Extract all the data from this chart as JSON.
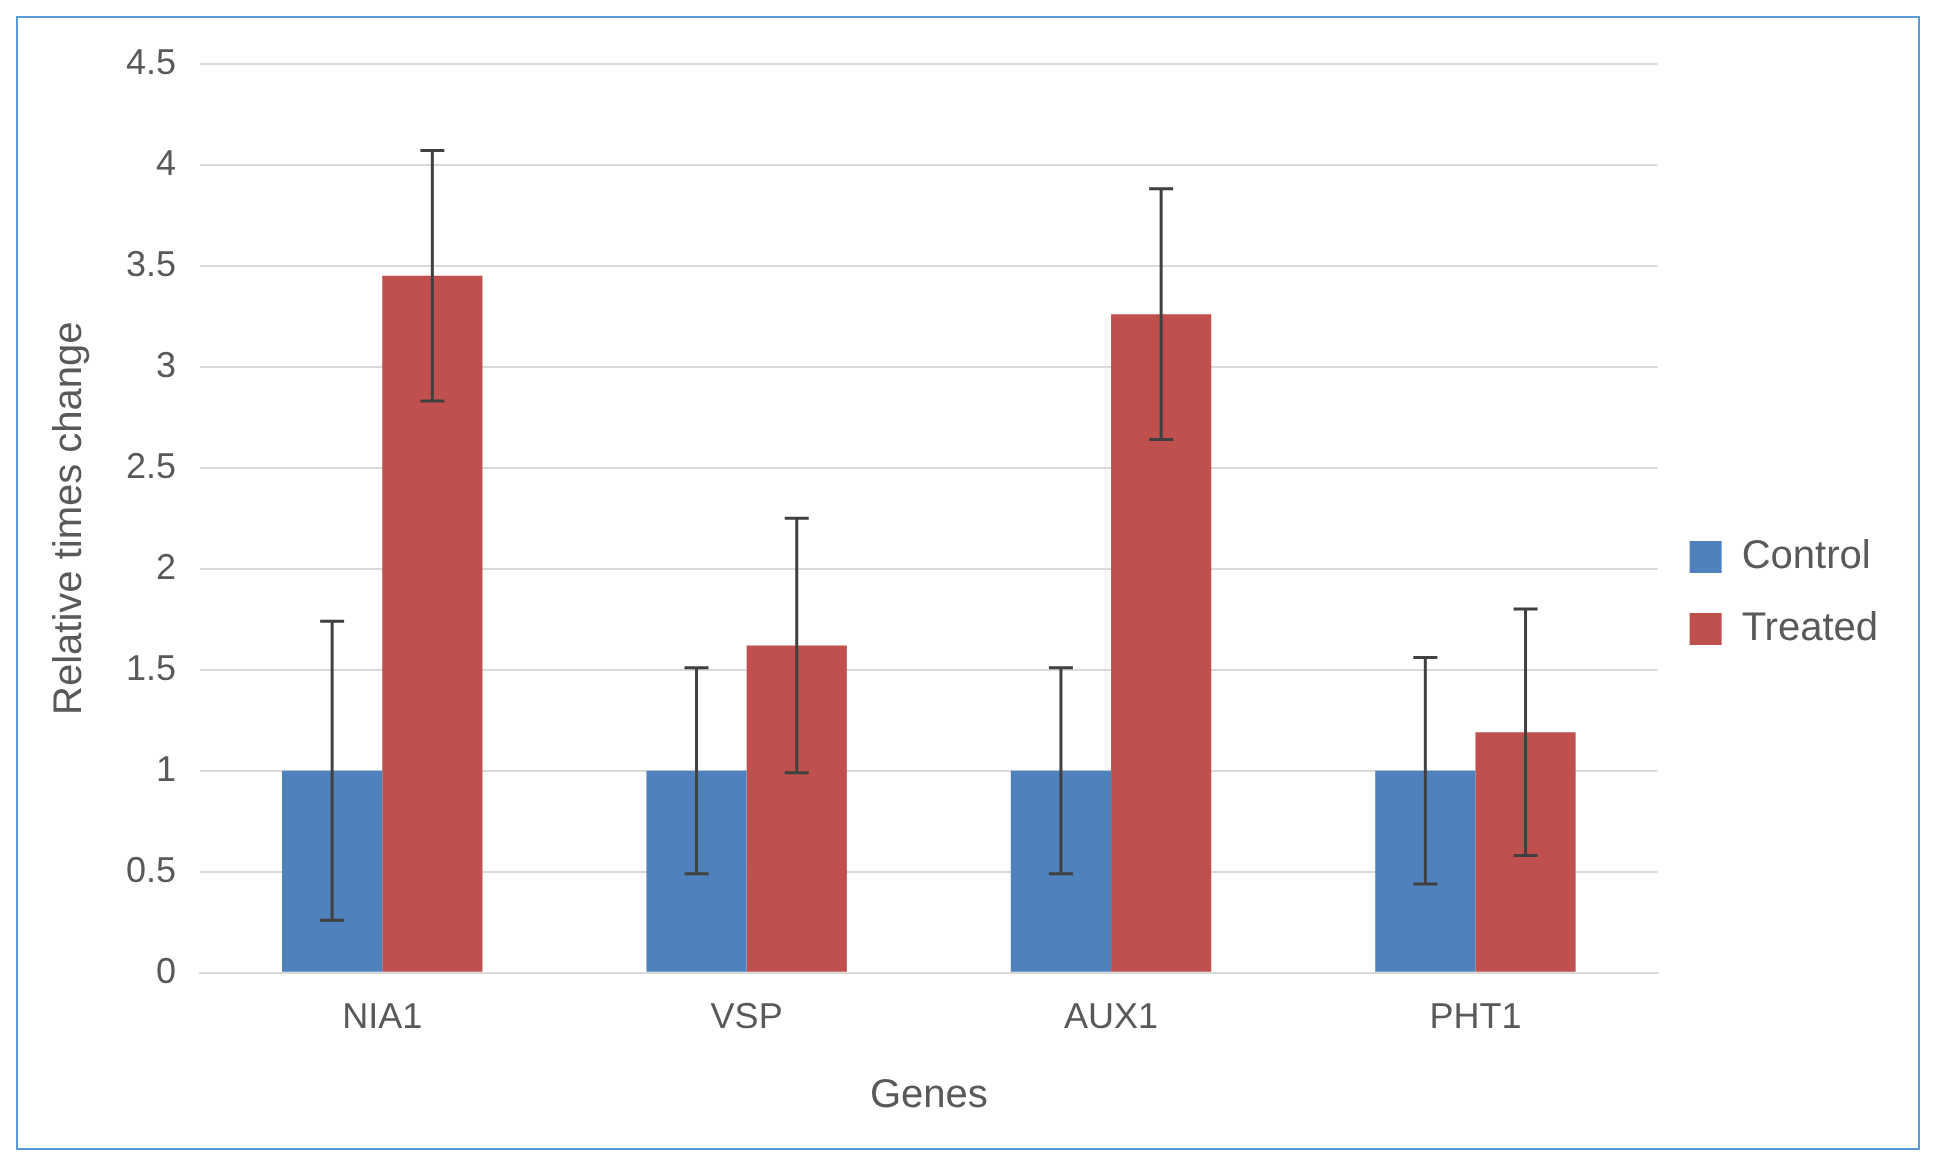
{
  "chart_data": {
    "type": "bar",
    "xlabel": "Genes",
    "ylabel": "Relative times change",
    "categories": [
      "NIA1",
      "VSP",
      "AUX1",
      "PHT1"
    ],
    "series": [
      {
        "name": "Control",
        "color": "#4f81bd",
        "values": [
          1,
          1,
          1,
          1
        ],
        "errors": [
          0.74,
          0.51,
          0.51,
          0.56
        ]
      },
      {
        "name": "Treated",
        "color": "#c0504d",
        "values": [
          3.45,
          1.62,
          3.26,
          1.19
        ],
        "errors": [
          0.62,
          0.63,
          0.62,
          0.61
        ]
      }
    ],
    "ylim": [
      0,
      4.5
    ],
    "yticks": [
      0,
      0.5,
      1,
      1.5,
      2,
      2.5,
      3,
      3.5,
      4,
      4.5
    ],
    "grid": "y",
    "legend": "right"
  }
}
